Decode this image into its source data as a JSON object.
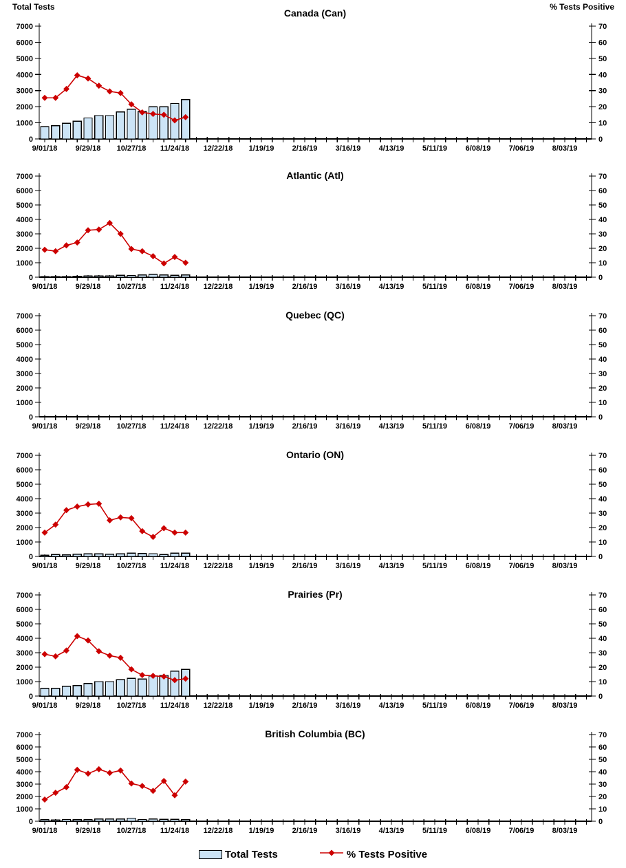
{
  "axes": {
    "left_title": "Total Tests",
    "right_title": "% Tests Positive",
    "left_min": 0,
    "left_max": 7000,
    "left_tick_step": 1000,
    "right_min": 0,
    "right_max": 70,
    "right_tick_step": 10,
    "x_tick_labels": [
      "9/01/18",
      "9/29/18",
      "10/27/18",
      "11/24/18",
      "12/22/18",
      "1/19/19",
      "2/16/19",
      "3/16/19",
      "4/13/19",
      "5/11/19",
      "6/08/19",
      "7/06/19",
      "8/03/19"
    ],
    "weekly_ticks_total": 51,
    "label_every_n_weeks": 4,
    "grid": false
  },
  "colors": {
    "bar_fill": "#CCE4F6",
    "bar_border": "#000000",
    "line": "#CC0000",
    "axis": "#000000",
    "text": "#000000",
    "background": "#FFFFFF"
  },
  "legend": {
    "bar_label": "Total Tests",
    "line_label": "% Tests Positive"
  },
  "chart_data": [
    {
      "type": "bar+line",
      "title": "Canada (Can)",
      "xlabel": "",
      "ylabel_left": "Total Tests",
      "ylabel_right": "% Tests Positive",
      "ylim_left": [
        0,
        7000
      ],
      "ylim_right": [
        0,
        70
      ],
      "legend_position": "bottom-shared",
      "x": [
        "9/01/18",
        "9/08/18",
        "9/15/18",
        "9/22/18",
        "9/29/18",
        "10/06/18",
        "10/13/18",
        "10/20/18",
        "10/27/18",
        "11/03/18",
        "11/10/18",
        "11/17/18",
        "11/24/18",
        "12/01/18"
      ],
      "series": [
        {
          "name": "Total Tests",
          "type": "bar",
          "axis": "left",
          "values": [
            750,
            830,
            970,
            1100,
            1300,
            1450,
            1450,
            1680,
            1850,
            1700,
            2000,
            2000,
            2200,
            2450
          ]
        },
        {
          "name": "% Tests Positive",
          "type": "line",
          "axis": "right",
          "values": [
            25.5,
            25.5,
            31,
            39.5,
            37.5,
            33,
            29.5,
            28.5,
            21.5,
            16.5,
            15.5,
            15,
            11.5,
            13.5
          ]
        }
      ]
    },
    {
      "type": "bar+line",
      "title": "Atlantic (Atl)",
      "ylim_left": [
        0,
        7000
      ],
      "ylim_right": [
        0,
        70
      ],
      "x": [
        "9/01/18",
        "9/08/18",
        "9/15/18",
        "9/22/18",
        "9/29/18",
        "10/06/18",
        "10/13/18",
        "10/20/18",
        "10/27/18",
        "11/03/18",
        "11/10/18",
        "11/17/18",
        "11/24/18",
        "12/01/18"
      ],
      "series": [
        {
          "name": "Total Tests",
          "type": "bar",
          "axis": "left",
          "values": [
            30,
            30,
            40,
            50,
            80,
            90,
            90,
            140,
            120,
            150,
            200,
            150,
            130,
            160
          ]
        },
        {
          "name": "% Tests Positive",
          "type": "line",
          "axis": "right",
          "values": [
            19,
            18,
            22,
            24,
            32.5,
            33,
            37.5,
            30,
            19.5,
            18,
            14.5,
            9.5,
            14,
            10
          ]
        }
      ]
    },
    {
      "type": "bar+line",
      "title": "Quebec (QC)",
      "ylim_left": [
        0,
        7000
      ],
      "ylim_right": [
        0,
        70
      ],
      "x": [],
      "series": [
        {
          "name": "Total Tests",
          "type": "bar",
          "axis": "left",
          "values": []
        },
        {
          "name": "% Tests Positive",
          "type": "line",
          "axis": "right",
          "values": []
        }
      ]
    },
    {
      "type": "bar+line",
      "title": "Ontario (ON)",
      "ylim_left": [
        0,
        7000
      ],
      "ylim_right": [
        0,
        70
      ],
      "x": [
        "9/01/18",
        "9/08/18",
        "9/15/18",
        "9/22/18",
        "9/29/18",
        "10/06/18",
        "10/13/18",
        "10/20/18",
        "10/27/18",
        "11/03/18",
        "11/10/18",
        "11/17/18",
        "11/24/18",
        "12/01/18"
      ],
      "series": [
        {
          "name": "Total Tests",
          "type": "bar",
          "axis": "left",
          "values": [
            80,
            140,
            100,
            150,
            180,
            170,
            150,
            180,
            230,
            200,
            190,
            140,
            230,
            230
          ]
        },
        {
          "name": "% Tests Positive",
          "type": "line",
          "axis": "right",
          "values": [
            16.5,
            22,
            32,
            34.5,
            36,
            36.5,
            25,
            27,
            26.5,
            17.5,
            13.5,
            19.5,
            16.5,
            16.5
          ]
        }
      ]
    },
    {
      "type": "bar+line",
      "title": "Prairies (Pr)",
      "ylim_left": [
        0,
        7000
      ],
      "ylim_right": [
        0,
        70
      ],
      "x": [
        "9/01/18",
        "9/08/18",
        "9/15/18",
        "9/22/18",
        "9/29/18",
        "10/06/18",
        "10/13/18",
        "10/20/18",
        "10/27/18",
        "11/03/18",
        "11/10/18",
        "11/17/18",
        "11/24/18",
        "12/01/18"
      ],
      "series": [
        {
          "name": "Total Tests",
          "type": "bar",
          "axis": "left",
          "values": [
            530,
            530,
            680,
            720,
            860,
            1000,
            1000,
            1130,
            1230,
            1180,
            1400,
            1430,
            1730,
            1850
          ]
        },
        {
          "name": "% Tests Positive",
          "type": "line",
          "axis": "right",
          "values": [
            29,
            27.5,
            31.5,
            41.5,
            38.5,
            31,
            28,
            26.5,
            18.5,
            14.5,
            14,
            13.5,
            11,
            12
          ]
        }
      ]
    },
    {
      "type": "bar+line",
      "title": "British Columbia (BC)",
      "ylim_left": [
        0,
        7000
      ],
      "ylim_right": [
        0,
        70
      ],
      "x": [
        "9/01/18",
        "9/08/18",
        "9/15/18",
        "9/22/18",
        "9/29/18",
        "10/06/18",
        "10/13/18",
        "10/20/18",
        "10/27/18",
        "11/03/18",
        "11/10/18",
        "11/17/18",
        "11/24/18",
        "12/01/18"
      ],
      "series": [
        {
          "name": "Total Tests",
          "type": "bar",
          "axis": "left",
          "values": [
            120,
            90,
            140,
            120,
            130,
            180,
            170,
            180,
            250,
            140,
            190,
            150,
            150,
            130
          ]
        },
        {
          "name": "% Tests Positive",
          "type": "line",
          "axis": "right",
          "values": [
            17.5,
            23,
            27.5,
            41.5,
            38.5,
            42,
            39,
            41,
            30.5,
            28.5,
            24.5,
            32.5,
            21,
            32
          ]
        }
      ]
    }
  ]
}
